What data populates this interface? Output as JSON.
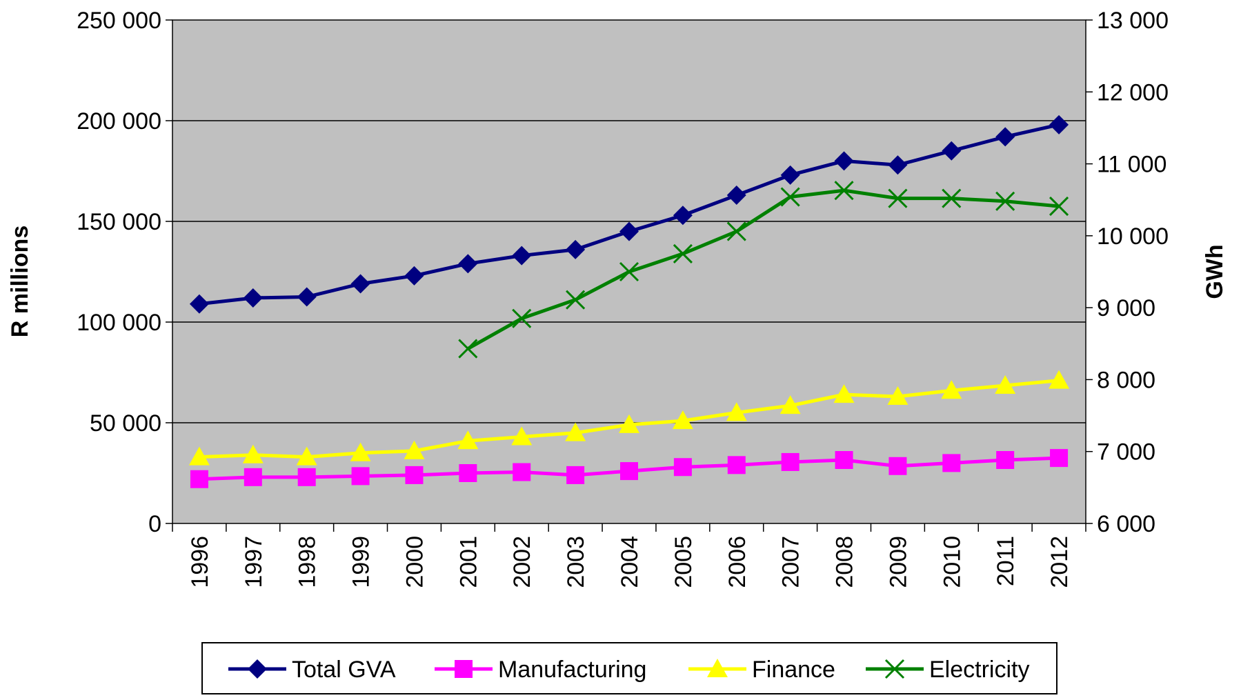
{
  "chart_data": {
    "type": "line",
    "categories": [
      "1996",
      "1997",
      "1998",
      "1999",
      "2000",
      "2001",
      "2002",
      "2003",
      "2004",
      "2005",
      "2006",
      "2007",
      "2008",
      "2009",
      "2010",
      "2011",
      "2012"
    ],
    "ylabel": "R millions",
    "y2label": "GWh",
    "ylim": [
      0,
      250000
    ],
    "yticks": [
      {
        "value": 0,
        "label": "0"
      },
      {
        "value": 50000,
        "label": "50 000"
      },
      {
        "value": 100000,
        "label": "100 000"
      },
      {
        "value": 150000,
        "label": "150 000"
      },
      {
        "value": 200000,
        "label": "200 000"
      },
      {
        "value": 250000,
        "label": "250 000"
      }
    ],
    "y2lim": [
      6000,
      13000
    ],
    "y2ticks": [
      {
        "value": 6000,
        "label": "6 000"
      },
      {
        "value": 7000,
        "label": "7 000"
      },
      {
        "value": 8000,
        "label": "8 000"
      },
      {
        "value": 9000,
        "label": "9 000"
      },
      {
        "value": 10000,
        "label": "10 000"
      },
      {
        "value": 11000,
        "label": "11 000"
      },
      {
        "value": 12000,
        "label": "12 000"
      },
      {
        "value": 13000,
        "label": "13 000"
      }
    ],
    "grid": true,
    "legend": "bottom",
    "background": "#c0c0c0",
    "series": [
      {
        "name": "Total GVA",
        "color": "#000080",
        "marker": "diamond",
        "values": [
          109000,
          112000,
          112500,
          119000,
          123000,
          129000,
          133000,
          136000,
          145000,
          153000,
          163000,
          173000,
          180000,
          178000,
          185000,
          192000,
          198000
        ]
      },
      {
        "name": "Manufacturing",
        "color": "#ff00ff",
        "marker": "square",
        "values": [
          22000,
          23000,
          23000,
          23500,
          24000,
          25000,
          25500,
          24000,
          26000,
          28000,
          29000,
          30500,
          31500,
          28500,
          30000,
          31500,
          32500
        ]
      },
      {
        "name": "Finance",
        "color": "#ffff00",
        "marker": "triangle",
        "values": [
          33000,
          34000,
          33000,
          35000,
          36000,
          41000,
          43000,
          45000,
          49000,
          51000,
          55000,
          58500,
          64000,
          63000,
          66000,
          68500,
          71000
        ]
      },
      {
        "name": "Electricity",
        "color": "#008000",
        "marker": "x",
        "axis": "y2",
        "values": [
          null,
          null,
          null,
          null,
          null,
          8430,
          8850,
          9110,
          9500,
          9750,
          10060,
          10540,
          10630,
          10520,
          10520,
          10480,
          10410
        ]
      }
    ]
  }
}
